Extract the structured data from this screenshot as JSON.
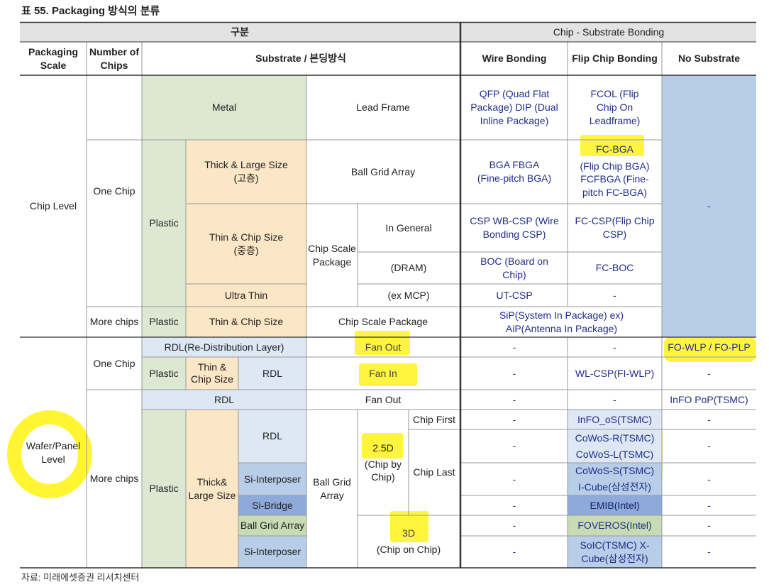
{
  "title": "표 55. Packaging 방식의 분류",
  "source": "자료: 미래에셋증권 리서치센터",
  "colors": {
    "highlight": "#fff200",
    "header_gray": "#e3e3e3",
    "no_substrate_blue": "#b7cde8"
  },
  "header": {
    "category": "구분",
    "bonding_group": "Chip - Substrate Bonding",
    "packaging_scale": "Packaging Scale",
    "number_of_chips": "Number of Chips",
    "substrate_method": "Substrate / 본딩방식",
    "wire_bonding": "Wire Bonding",
    "flip_chip_bonding": "Flip Chip Bonding",
    "no_substrate": "No Substrate"
  },
  "left": {
    "chip_level": "Chip Level",
    "wafer_panel_level": "Wafer/Panel Level",
    "one_chip": "One Chip",
    "more_chips": "More chips",
    "one_chip_2": "One Chip",
    "more_chips_2": "More chips"
  },
  "sub": {
    "metal": "Metal",
    "lead_frame": "Lead Frame",
    "plastic": "Plastic",
    "thick_large": "Thick & Large Size (고층)",
    "ball_grid_array": "Ball Grid Array",
    "thin_chip": "Thin & Chip Size (중층)",
    "chip_scale_package": "Chip Scale Package",
    "in_general": "In General",
    "dram": "(DRAM)",
    "ultra_thin": "Ultra Thin",
    "ex_mcp": "(ex MCP)",
    "plastic_mc": "Plastic",
    "thin_chip_size": "Thin & Chip Size",
    "chip_scale_package_2": "Chip Scale Package",
    "rdl_layer": "RDL(Re-Distribution Layer)",
    "fan_out": "Fan Out",
    "plastic_w1": "Plastic",
    "thin_chip_w": "Thin & Chip Size",
    "rdl_w1": "RDL",
    "fan_in": "Fan In",
    "rdl_w2": "RDL",
    "fan_out_2": "Fan Out",
    "plastic_w2": "Plastic",
    "thick_large_w": "Thick& Large Size",
    "rdl_w3": "RDL",
    "si_interposer": "Si-Interposer",
    "si_bridge": "Si-Bridge",
    "bga_w": "Ball Grid Array",
    "si_interposer_2": "Si-Interposer",
    "ball_grid_array_w": "Ball Grid Array",
    "d25": "2.5D",
    "chip_by_chip": "(Chip by Chip)",
    "chip_first": "Chip First",
    "chip_last": "Chip Last",
    "d3": "3D",
    "chip_on_chip": "(Chip on Chip)"
  },
  "wire": {
    "r1": "QFP (Quad Flat Package) DIP (Dual Inline Package)",
    "r2": "BGA FBGA (Fine-pitch BGA)",
    "r3": "CSP WB-CSP (Wire Bonding CSP)",
    "r4": "BOC (Board on Chip)",
    "r5": "UT-CSP",
    "sip": "SiP(System In Package) ex) AiP(Antenna In Package)",
    "w1": "-",
    "w2": "-",
    "w3": "-",
    "w4": "-",
    "w5": "-",
    "w6": "-",
    "w7": "-",
    "w8": "-",
    "w9": "-"
  },
  "flip": {
    "r1": "FCOL (Flip Chip On Leadframe)",
    "r2_hl": "FC-BGA",
    "r2": "(Flip Chip BGA) FCFBGA (Fine-pitch FC-BGA)",
    "r3": "FC-CSP(Flip Chip CSP)",
    "r4": "FC-BOC",
    "r5": "-",
    "w1": "-",
    "w2": "WL-CSP(FI-WLP)",
    "w3": "-",
    "w4": "InFO_oS(TSMC)",
    "w5": "CoWoS-R(TSMC)",
    "w5b": "CoWoS-L(TSMC)",
    "w6": "CoWoS-S(TSMC)",
    "w6b": "I-Cube(삼성전자)",
    "w7": "EMIB(Intel)",
    "w8": "FOVEROS(Intel)",
    "w9": "SoIC(TSMC) X-Cube(삼성전자)"
  },
  "nosub": {
    "chip": "-",
    "w1": "FO-WLP / FO-PLP",
    "w2": "-",
    "w3": "InFO PoP(TSMC)",
    "w4": "-",
    "w5": "-",
    "w6": "-",
    "w7": "-",
    "w8": "-",
    "w9": "-"
  }
}
